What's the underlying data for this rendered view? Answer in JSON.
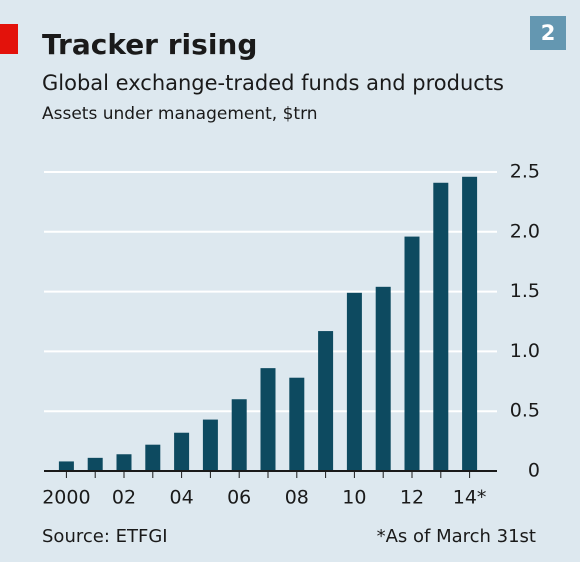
{
  "chart_data": {
    "type": "bar",
    "title": "Tracker rising",
    "subtitle": "Global exchange-traded funds and products",
    "y_label": "Assets under management, $trn",
    "badge": "2",
    "source": "Source: ETFGI",
    "footnote": "*As of March 31st",
    "categories": [
      "2000",
      null,
      "02",
      null,
      "04",
      null,
      "06",
      null,
      "08",
      null,
      "10",
      null,
      "12",
      null,
      "14*"
    ],
    "values": [
      0.08,
      0.11,
      0.14,
      0.22,
      0.32,
      0.43,
      0.6,
      0.86,
      0.78,
      1.17,
      1.49,
      1.54,
      1.96,
      2.41,
      2.46
    ],
    "color": "#0d4a60",
    "ylim": [
      0,
      2.5
    ],
    "yticks": [
      0,
      0.5,
      {
        "value": 1,
        "label": "1.0"
      },
      1.5,
      {
        "value": 2,
        "label": "2.0"
      },
      2.5
    ],
    "grid": true
  }
}
